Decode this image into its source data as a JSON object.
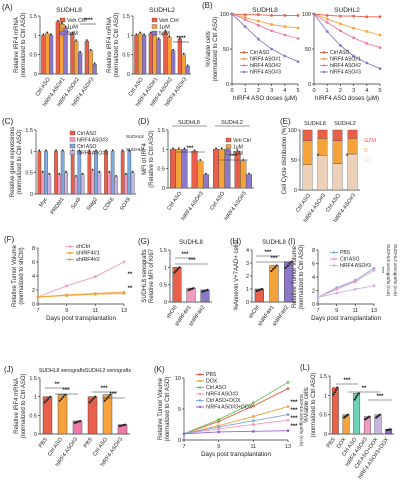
{
  "palette": {
    "ctrl": "#e8604a",
    "lo": "#f5a23a",
    "mid": "#f07aa7",
    "hi": "#8c78c8",
    "pink": "#f29ac0",
    "blue": "#7ea9df",
    "lav": "#c9b3e3",
    "teal": "#6fd3b5",
    "green": "#73c35a",
    "purple": "#9266d6",
    "g2m": "#e8604a",
    "s": "#f5a23a",
    "g1": "#ecd0b8"
  },
  "chart_data": [
    {
      "id": "A1",
      "panel": "(A)",
      "type": "bar",
      "title": "SUDHL8",
      "ylabel": "Relative IRF4 mRNA (normalized to Ctrl ASO)",
      "categories": [
        "Ctrl ASO",
        "hIRF4 ASO#1",
        "hIRF4 ASO#2",
        "hIRF4 ASO#3"
      ],
      "ylim": [
        0,
        1.5
      ],
      "yticks": [
        0,
        0.5,
        1.0,
        1.5
      ],
      "series": [
        {
          "name": "Veh Ctrl",
          "color": "ctrl",
          "values": [
            1.0,
            1.35,
            1.05,
            0.85
          ]
        },
        {
          "name": "1μM",
          "color": "lo",
          "values": [
            1.05,
            1.3,
            0.85,
            0.6
          ]
        },
        {
          "name": "5μM",
          "color": "hi",
          "values": [
            1.0,
            1.2,
            0.55,
            0.25
          ]
        }
      ],
      "annotations": [
        "****"
      ]
    },
    {
      "id": "A2",
      "type": "bar",
      "title": "SUDHL2",
      "ylabel": "Relative IRF4 mRNA (normalized to Ctrl ASO)",
      "categories": [
        "Ctrl ASO",
        "hIRF4 ASO#1",
        "hIRF4 ASO#2",
        "hIRF4 ASO#3"
      ],
      "ylim": [
        0,
        1.5
      ],
      "yticks": [
        0,
        0.5,
        1.0,
        1.5
      ],
      "series": [
        {
          "name": "Veh Ctrl",
          "color": "ctrl",
          "values": [
            1.0,
            1.05,
            1.1,
            0.9
          ]
        },
        {
          "name": "1μM",
          "color": "lo",
          "values": [
            1.05,
            1.0,
            0.95,
            0.5
          ]
        },
        {
          "name": "5μM",
          "color": "hi",
          "values": [
            1.0,
            0.9,
            0.6,
            0.2
          ]
        }
      ],
      "annotations": [
        "****"
      ]
    },
    {
      "id": "B1",
      "panel": "(B)",
      "type": "line",
      "title": "SUDHL8",
      "ylabel": "%Viable cells (normalized to Ctrl ASO)",
      "xlabel": "hIRF4 ASO doses (μM)",
      "x": [
        0,
        1,
        2,
        3,
        4,
        5
      ],
      "xlim": [
        0,
        5
      ],
      "ylim": [
        0,
        100
      ],
      "xticks": [
        0,
        1,
        2,
        3,
        4,
        5
      ],
      "yticks": [
        0,
        50,
        100
      ],
      "series": [
        {
          "name": "Ctrl ASO",
          "color": "ctrl",
          "values": [
            100,
            99,
            99,
            98,
            98,
            98
          ]
        },
        {
          "name": "hIRF4 ASO#1",
          "color": "lo",
          "values": [
            100,
            95,
            90,
            85,
            82,
            80
          ]
        },
        {
          "name": "hIRF4 ASO#2",
          "color": "mid",
          "values": [
            100,
            92,
            84,
            76,
            70,
            65
          ]
        },
        {
          "name": "hIRF4 ASO#3",
          "color": "hi",
          "values": [
            100,
            82,
            64,
            50,
            40,
            32
          ]
        }
      ]
    },
    {
      "id": "B2",
      "type": "line",
      "title": "SUDHL2",
      "xlabel": "hIRF4 ASO doses (μM)",
      "x": [
        0,
        1,
        2,
        3,
        4,
        5
      ],
      "xlim": [
        0,
        5
      ],
      "ylim": [
        0,
        100
      ],
      "xticks": [
        0,
        1,
        2,
        3,
        4,
        5
      ],
      "yticks": [
        0,
        50,
        100
      ],
      "series": [
        {
          "name": "Ctrl ASO",
          "color": "ctrl",
          "values": [
            100,
            98,
            97,
            97,
            96,
            96
          ]
        },
        {
          "name": "hIRF4 ASO#1",
          "color": "lo",
          "values": [
            100,
            93,
            86,
            80,
            75,
            70
          ]
        },
        {
          "name": "hIRF4 ASO#2",
          "color": "mid",
          "values": [
            100,
            88,
            76,
            66,
            58,
            52
          ]
        },
        {
          "name": "hIRF4 ASO#3",
          "color": "hi",
          "values": [
            100,
            75,
            55,
            40,
            30,
            22
          ]
        }
      ]
    },
    {
      "id": "C",
      "panel": "(C)",
      "type": "bar",
      "ylabel": "Relative gene expressions (normalized to Ctrl ASO)",
      "categories": [
        "Myc",
        "PRDM1",
        "Sox8",
        "Stag2",
        "CDK6",
        "SOX9"
      ],
      "ylim": [
        0,
        1.5
      ],
      "yticks": [
        0,
        0.5,
        1.0,
        1.5
      ],
      "legend_groups": [
        "SUDHL8",
        "SUDHL2"
      ],
      "series": [
        {
          "name": "Ctrl ASO",
          "group": "SUDHL8",
          "color": "ctrl",
          "values": [
            1.0,
            1.0,
            1.0,
            1.0,
            1.0,
            1.0
          ]
        },
        {
          "name": "hIRF4 ASO#3",
          "group": "SUDHL8",
          "color": "pink",
          "values": [
            0.5,
            0.45,
            0.4,
            0.55,
            0.5,
            0.45
          ]
        },
        {
          "name": "Ctrl ASO",
          "group": "SUDHL2",
          "color": "blue",
          "values": [
            1.0,
            1.0,
            1.0,
            1.0,
            1.0,
            1.0
          ]
        },
        {
          "name": "hIRF4 ASO#3",
          "group": "SUDHL2",
          "color": "lav",
          "values": [
            0.45,
            0.5,
            0.45,
            0.5,
            0.4,
            0.5
          ]
        }
      ]
    },
    {
      "id": "D",
      "panel": "(D)",
      "type": "bar",
      "ylabel": "MFI of IRF4 (Relative to Ctrl ASO)",
      "groups": [
        "SUDHL8",
        "SUDHL2"
      ],
      "categories": [
        "Ctrl ASO",
        "hIRF4 ASO#3",
        "Ctrl ASO",
        "hIRF4 ASO#3"
      ],
      "ylim": [
        0,
        1.5
      ],
      "yticks": [
        0,
        0.5,
        1.0,
        1.5
      ],
      "series": [
        {
          "name": "Veh Ctrl",
          "color": "ctrl",
          "values": [
            1.0,
            0.95,
            1.0,
            0.95
          ]
        },
        {
          "name": "1μM",
          "color": "lo",
          "values": [
            1.0,
            0.7,
            1.0,
            0.7
          ]
        },
        {
          "name": "5μM",
          "color": "hi",
          "values": [
            1.0,
            0.35,
            1.0,
            0.35
          ]
        }
      ],
      "annotations": [
        "***",
        "***"
      ]
    },
    {
      "id": "E",
      "panel": "(E)",
      "type": "bar",
      "stacked": true,
      "ylabel": "Cell Cycle distribution (%)",
      "groups": [
        "SUDHL8",
        "SUDHL2"
      ],
      "categories": [
        "Ctrl ASO",
        "hIRF4 ASO#3",
        "Ctrl ASO",
        "hIRF4 ASO#3"
      ],
      "ylim": [
        0,
        100
      ],
      "yticks": [
        0,
        50,
        100
      ],
      "series": [
        {
          "name": "G1",
          "color": "g1",
          "values": [
            42,
            58,
            44,
            60
          ]
        },
        {
          "name": "S",
          "color": "s",
          "values": [
            40,
            28,
            38,
            26
          ]
        },
        {
          "name": "G2M",
          "color": "g2m",
          "values": [
            18,
            14,
            18,
            14
          ]
        }
      ],
      "annotations": [
        "*",
        "*"
      ]
    },
    {
      "id": "F",
      "panel": "(F)",
      "type": "line",
      "ylabel": "Relative Tumor Volume (normalized to shCtrl)",
      "xlabel": "Days post transplantation",
      "x": [
        7,
        9,
        11,
        13
      ],
      "xlim": [
        7,
        13
      ],
      "ylim": [
        0,
        8
      ],
      "xticks": [
        7,
        9,
        11,
        13
      ],
      "yticks": [
        0,
        2,
        4,
        6,
        8
      ],
      "series": [
        {
          "name": "shCtrl",
          "color": "pink",
          "values": [
            1.0,
            2.6,
            3.9,
            6.0
          ]
        },
        {
          "name": "shIRF4#1",
          "color": "lo",
          "values": [
            1.0,
            1.3,
            1.5,
            1.7
          ]
        },
        {
          "name": "shIRF4#2",
          "color": "lo",
          "values": [
            1.0,
            1.2,
            1.4,
            1.5
          ]
        }
      ],
      "annotations": [
        "**",
        "**"
      ]
    },
    {
      "id": "G",
      "panel": "(G)",
      "type": "bar",
      "title": "SUDHL8",
      "ylabel": "Relative MFI of Ki67 (SUDHL8 xenografts)",
      "categories": [
        "shCtrl",
        "shIRF4#1",
        "shIRF4#2"
      ],
      "ylim": [
        0,
        1.5
      ],
      "yticks": [
        0,
        0.5,
        1.0,
        1.5
      ],
      "values": [
        1.0,
        0.4,
        0.35
      ],
      "colors": [
        "ctrl",
        "pink",
        "hi"
      ],
      "annotations": [
        "***",
        "***"
      ]
    },
    {
      "id": "H",
      "panel": "(H)",
      "type": "bar",
      "title": "SUDHL8",
      "ylabel": "%Annexin V+7AAD+ cells",
      "categories": [
        "shCtrl",
        "shIRF4#1",
        "shIRF4#2"
      ],
      "ylim": [
        0,
        4
      ],
      "yticks": [
        0,
        1,
        2,
        3,
        4
      ],
      "values": [
        1.0,
        2.8,
        3.1
      ],
      "colors": [
        "ctrl",
        "lo",
        "hi"
      ],
      "annotations": [
        "***",
        "***"
      ]
    },
    {
      "id": "I",
      "panel": "(I)",
      "type": "line",
      "ylabel": "Relative Tumor Volume (normalized to Ctrl ASO)",
      "xlabel": "Days post transplantation",
      "x": [
        7,
        9,
        11,
        13
      ],
      "xlim": [
        7,
        13
      ],
      "ylim": [
        0,
        8
      ],
      "xticks": [
        7,
        9,
        11,
        13
      ],
      "yticks": [
        0,
        2,
        4,
        6,
        8
      ],
      "series": [
        {
          "name": "PBS",
          "color": "blue",
          "values": [
            1.0,
            2.4,
            3.5,
            5.3
          ]
        },
        {
          "name": "Ctrl ASO",
          "color": "pink",
          "values": [
            1.0,
            2.2,
            3.3,
            5.0
          ]
        },
        {
          "name": "hIRF4 ASO#3",
          "color": "lav",
          "values": [
            1.0,
            1.6,
            2.2,
            2.7
          ]
        }
      ],
      "side_labels": [
        "SUDHL8 xenografts (n=5)",
        "SUDHL2 xenografts (n=5)"
      ],
      "annotations": [
        "***",
        "**"
      ]
    },
    {
      "id": "J",
      "panel": "(J)",
      "type": "bar",
      "ylabel": "Relative IRF4 mRNA (normalized to Ctrl ASO)",
      "groups": [
        "SUDHL8 xenografts",
        "SUDHL2 xenografts"
      ],
      "categories": [
        "PBS",
        "Ctrl ASO",
        "hIRF4 ASO#3",
        "PBS",
        "Ctrl ASO",
        "hIRF4 ASO#3"
      ],
      "ylim": [
        0,
        1.5
      ],
      "yticks": [
        0,
        0.5,
        1.0,
        1.5
      ],
      "values": [
        1.0,
        1.05,
        0.35,
        1.0,
        1.05,
        0.25
      ],
      "colors": [
        "ctrl",
        "lo",
        "mid",
        "ctrl",
        "lo",
        "mid"
      ],
      "annotations": [
        "**",
        "***",
        "***",
        "***"
      ]
    },
    {
      "id": "K",
      "panel": "(K)",
      "type": "line",
      "ylabel": "Relative Tumor Volume (normalized to Ctrl ASO)",
      "xlabel": "Days post transplantation",
      "x": [
        7,
        9,
        11,
        13
      ],
      "xlim": [
        7,
        13
      ],
      "ylim": [
        0,
        10
      ],
      "xticks": [
        7,
        9,
        11,
        13
      ],
      "yticks": [
        0,
        5,
        10
      ],
      "series": [
        {
          "name": "PBS",
          "color": "ctrl",
          "values": [
            1.0,
            3.0,
            5.5,
            8.3
          ]
        },
        {
          "name": "DOX",
          "color": "lo",
          "values": [
            1.0,
            2.3,
            3.8,
            5.4
          ]
        },
        {
          "name": "Ctrl ASO",
          "color": "green",
          "values": [
            1.0,
            3.3,
            6.0,
            9.3
          ]
        },
        {
          "name": "hIRF4 ASO#3",
          "color": "pink",
          "values": [
            1.0,
            1.8,
            2.5,
            3.2
          ]
        },
        {
          "name": "Ctrl ASO+DOX",
          "color": "blue",
          "values": [
            1.0,
            2.1,
            3.1,
            4.1
          ]
        },
        {
          "name": "hIRF4 ASO#3+DOX",
          "color": "purple",
          "values": [
            1.0,
            1.3,
            1.4,
            1.5
          ]
        }
      ],
      "side_labels": [
        "SUDHL8 xenografts (n=5)"
      ],
      "annotations": [
        "***",
        "***",
        "***",
        "***"
      ]
    },
    {
      "id": "L",
      "panel": "(L)",
      "type": "bar",
      "ylabel": "%Viable cells (normalized to Ctrl ASO)",
      "categories": [
        "PBS",
        "DOX",
        "Ctrl ASO",
        "hIRF4 ASO#3",
        "Ctrl ASO+DOX",
        "hIRF4 ASO#3+DOX"
      ],
      "ylim": [
        0,
        1.5
      ],
      "yticks": [
        0,
        0.5,
        1.0,
        1.5
      ],
      "values": [
        1.2,
        0.5,
        1.05,
        0.45,
        0.5,
        0.12
      ],
      "colors": [
        "ctrl",
        "lo",
        "teal",
        "pink",
        "lav",
        "purple"
      ],
      "annotations": [
        "***",
        "**",
        "***"
      ]
    }
  ]
}
